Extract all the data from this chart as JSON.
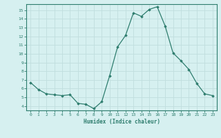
{
  "x": [
    0,
    1,
    2,
    3,
    4,
    5,
    6,
    7,
    8,
    9,
    10,
    11,
    12,
    13,
    14,
    15,
    16,
    17,
    18,
    19,
    20,
    21,
    22,
    23
  ],
  "y": [
    6.7,
    5.9,
    5.4,
    5.3,
    5.2,
    5.3,
    4.3,
    4.2,
    3.7,
    4.5,
    7.5,
    10.8,
    12.1,
    14.7,
    14.3,
    15.1,
    15.4,
    13.2,
    10.1,
    9.2,
    8.2,
    6.6,
    5.4,
    5.2
  ],
  "line_color": "#2e7d6e",
  "marker": "D",
  "marker_size": 1.8,
  "bg_color": "#d6f0f0",
  "grid_color": "#c0dede",
  "xlabel": "Humidex (Indice chaleur)",
  "xlabel_color": "#2e7d6e",
  "tick_color": "#2e7d6e",
  "spine_color": "#2e7d6e",
  "xlim": [
    -0.5,
    23.5
  ],
  "ylim": [
    3.5,
    15.7
  ],
  "yticks": [
    4,
    5,
    6,
    7,
    8,
    9,
    10,
    11,
    12,
    13,
    14,
    15
  ],
  "xticks": [
    0,
    1,
    2,
    3,
    4,
    5,
    6,
    7,
    8,
    9,
    10,
    11,
    12,
    13,
    14,
    15,
    16,
    17,
    18,
    19,
    20,
    21,
    22,
    23
  ]
}
